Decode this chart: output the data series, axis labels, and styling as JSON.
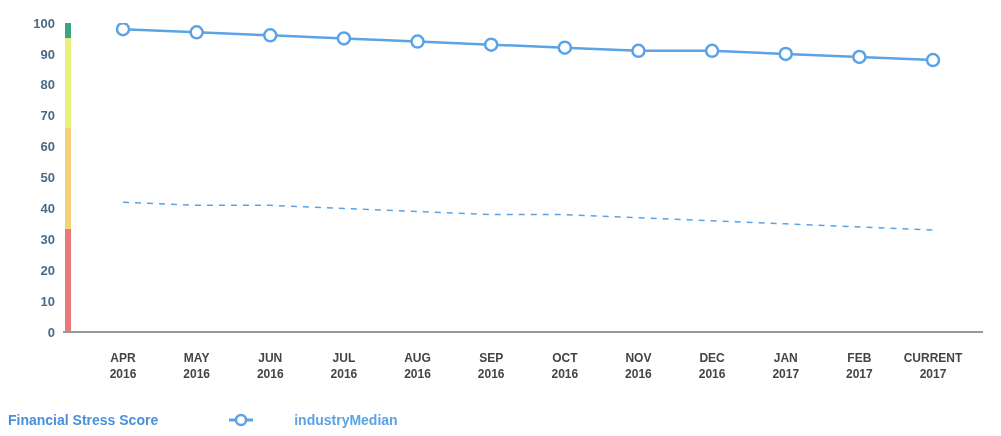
{
  "chart_data": {
    "type": "line",
    "categories": [
      "APR 2016",
      "MAY 2016",
      "JUN 2016",
      "JUL 2016",
      "AUG 2016",
      "SEP 2016",
      "OCT 2016",
      "NOV 2016",
      "DEC 2016",
      "JAN 2017",
      "FEB 2017",
      "CURRENT 2017"
    ],
    "series": [
      {
        "name": "industryMedian",
        "color": "#5ba3e6",
        "marker": "circle",
        "line_style": "solid",
        "values": [
          98,
          97,
          96,
          95,
          94,
          93,
          92,
          91,
          91,
          90,
          89,
          88
        ]
      },
      {
        "color": "#5ba3e6",
        "marker": "none",
        "line_style": "dashed",
        "values": [
          42,
          41,
          41,
          40,
          39,
          38,
          38,
          37,
          36,
          35,
          34,
          33
        ]
      }
    ],
    "ylim": [
      0,
      100
    ],
    "yticks": [
      0,
      10,
      20,
      30,
      40,
      50,
      60,
      70,
      80,
      90,
      100
    ],
    "grid": false,
    "legend": "bottom left",
    "legend_title": "Financial Stress Score"
  }
}
